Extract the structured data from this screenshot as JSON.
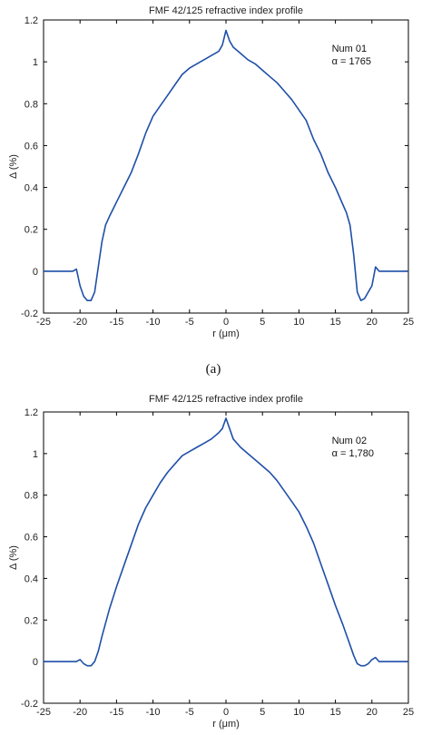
{
  "chart_data": [
    {
      "type": "line",
      "title": "FMF 42/125 refractive index profile",
      "xlabel": "r (μm)",
      "ylabel": "Δ (%)",
      "xlim": [
        -25,
        25
      ],
      "ylim": [
        -0.2,
        1.2
      ],
      "xticks": [
        "-25",
        "-20",
        "-15",
        "-10",
        "-5",
        "0",
        "5",
        "10",
        "15",
        "20",
        "25"
      ],
      "yticks": [
        "-0.2",
        "0",
        "0.2",
        "0.4",
        "0.6",
        "0.8",
        "1",
        "1.2"
      ],
      "annotation": [
        "Num 01",
        "α = 1765"
      ],
      "caption": "(a)",
      "series_color": "#1f4fa8",
      "x": [
        -25,
        -21,
        -20.5,
        -20,
        -19.5,
        -19,
        -18.5,
        -18,
        -17.5,
        -17,
        -16.5,
        -16,
        -15,
        -14,
        -13,
        -12,
        -11,
        -10,
        -9,
        -8,
        -7,
        -6,
        -5,
        -4,
        -3,
        -2,
        -1,
        -0.5,
        0,
        0.5,
        1,
        2,
        3,
        4,
        5,
        6,
        7,
        8,
        9,
        10,
        11,
        12,
        13,
        14,
        15,
        16,
        16.5,
        17,
        17.5,
        18,
        18.5,
        19,
        19.5,
        20,
        20.5,
        21,
        25
      ],
      "y": [
        0,
        0,
        0.01,
        -0.07,
        -0.12,
        -0.14,
        -0.14,
        -0.1,
        0.02,
        0.14,
        0.22,
        0.26,
        0.33,
        0.4,
        0.47,
        0.56,
        0.66,
        0.74,
        0.79,
        0.84,
        0.89,
        0.94,
        0.97,
        0.99,
        1.01,
        1.03,
        1.05,
        1.08,
        1.15,
        1.1,
        1.07,
        1.04,
        1.01,
        0.99,
        0.96,
        0.93,
        0.9,
        0.86,
        0.82,
        0.77,
        0.72,
        0.63,
        0.56,
        0.47,
        0.4,
        0.32,
        0.28,
        0.22,
        0.08,
        -0.1,
        -0.14,
        -0.13,
        -0.1,
        -0.07,
        0.02,
        0,
        0
      ]
    },
    {
      "type": "line",
      "title": "FMF 42/125 refractive index profile",
      "xlabel": "r (μm)",
      "ylabel": "Δ (%)",
      "xlim": [
        -25,
        25
      ],
      "ylim": [
        -0.2,
        1.2
      ],
      "xticks": [
        "-25",
        "-20",
        "-15",
        "-10",
        "-5",
        "0",
        "5",
        "10",
        "15",
        "20",
        "25"
      ],
      "yticks": [
        "-0.2",
        "0",
        "0.2",
        "0.4",
        "0.6",
        "0.8",
        "1",
        "1.2"
      ],
      "annotation": [
        "Num 02",
        "α = 1,780"
      ],
      "caption": "",
      "series_color": "#1f4fa8",
      "x": [
        -25,
        -21,
        -20.5,
        -20,
        -19.5,
        -19,
        -18.5,
        -18,
        -17.5,
        -17,
        -16,
        -15,
        -14,
        -13,
        -12,
        -11,
        -10,
        -9,
        -8,
        -7,
        -6,
        -5,
        -4,
        -3,
        -2,
        -1,
        -0.5,
        0,
        0.5,
        1,
        2,
        3,
        4,
        5,
        6,
        7,
        8,
        9,
        10,
        11,
        12,
        13,
        14,
        15,
        16,
        17,
        17.5,
        18,
        18.5,
        19,
        19.5,
        20,
        20.5,
        21,
        25
      ],
      "y": [
        0,
        0,
        0,
        0.01,
        -0.01,
        -0.02,
        -0.02,
        0.0,
        0.05,
        0.12,
        0.25,
        0.36,
        0.46,
        0.56,
        0.66,
        0.74,
        0.8,
        0.86,
        0.91,
        0.95,
        0.99,
        1.01,
        1.03,
        1.05,
        1.07,
        1.1,
        1.12,
        1.17,
        1.12,
        1.07,
        1.03,
        1.0,
        0.97,
        0.94,
        0.91,
        0.87,
        0.82,
        0.77,
        0.72,
        0.65,
        0.57,
        0.47,
        0.37,
        0.27,
        0.18,
        0.08,
        0.03,
        -0.01,
        -0.02,
        -0.02,
        -0.01,
        0.01,
        0.02,
        0,
        0
      ]
    }
  ]
}
